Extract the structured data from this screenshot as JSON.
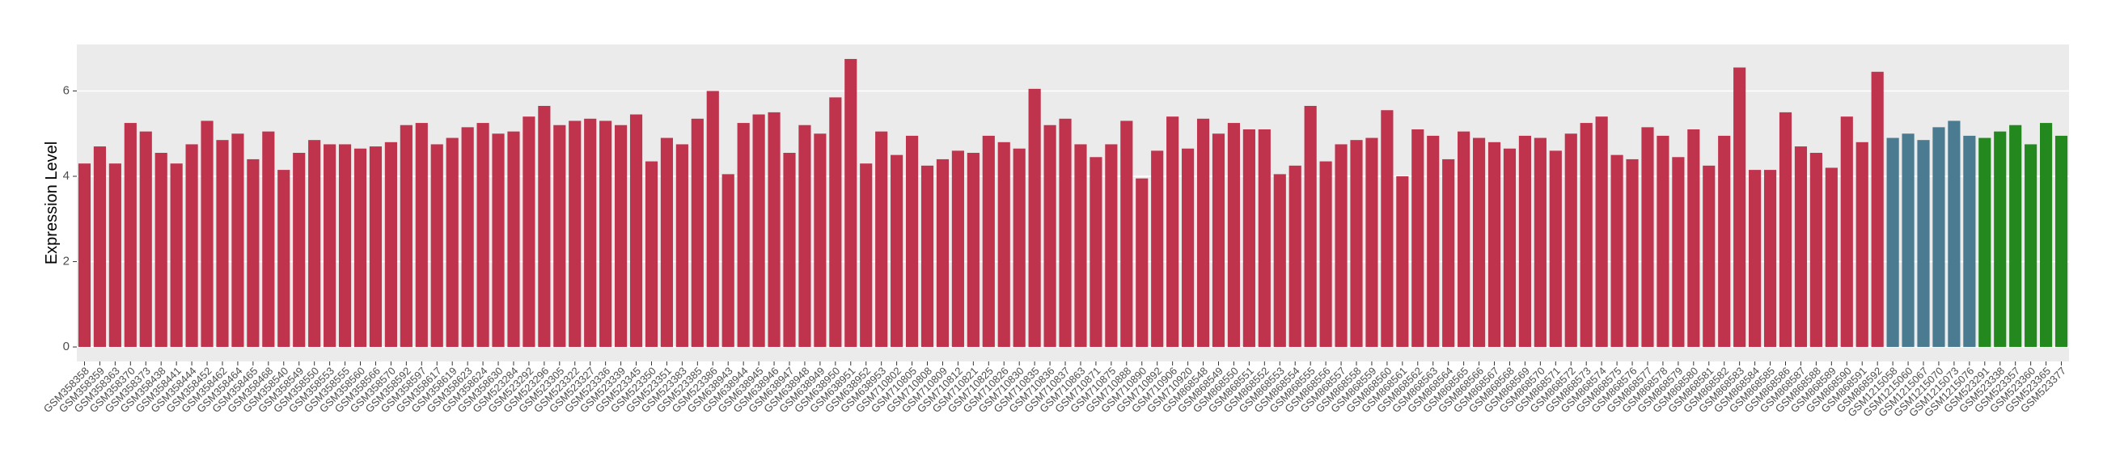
{
  "chart_data": {
    "type": "bar",
    "y_label": "Expression Level",
    "categories": [
      "GSM358358",
      "GSM358359",
      "GSM358363",
      "GSM358370",
      "GSM358373",
      "GSM358438",
      "GSM358441",
      "GSM358444",
      "GSM358452",
      "GSM358462",
      "GSM358464",
      "GSM358465",
      "GSM358468",
      "GSM358540",
      "GSM358549",
      "GSM358550",
      "GSM358553",
      "GSM358555",
      "GSM358560",
      "GSM358566",
      "GSM358570",
      "GSM358592",
      "GSM358597",
      "GSM358617",
      "GSM358619",
      "GSM358623",
      "GSM358624",
      "GSM358630",
      "GSM523284",
      "GSM523292",
      "GSM523296",
      "GSM523305",
      "GSM523322",
      "GSM523327",
      "GSM523336",
      "GSM523339",
      "GSM523345",
      "GSM523350",
      "GSM523351",
      "GSM523383",
      "GSM523385",
      "GSM523386",
      "GSM638943",
      "GSM638944",
      "GSM638945",
      "GSM638946",
      "GSM638947",
      "GSM638948",
      "GSM638949",
      "GSM638950",
      "GSM638951",
      "GSM638952",
      "GSM638953",
      "GSM710802",
      "GSM710805",
      "GSM710808",
      "GSM710809",
      "GSM710812",
      "GSM710821",
      "GSM710825",
      "GSM710826",
      "GSM710830",
      "GSM710835",
      "GSM710836",
      "GSM710837",
      "GSM710863",
      "GSM710871",
      "GSM710875",
      "GSM710888",
      "GSM710890",
      "GSM710892",
      "GSM710906",
      "GSM710920",
      "GSM868548",
      "GSM868549",
      "GSM868550",
      "GSM868551",
      "GSM868552",
      "GSM868553",
      "GSM868554",
      "GSM868555",
      "GSM868556",
      "GSM868557",
      "GSM868558",
      "GSM868559",
      "GSM868560",
      "GSM868561",
      "GSM868562",
      "GSM868563",
      "GSM868564",
      "GSM868565",
      "GSM868566",
      "GSM868567",
      "GSM868568",
      "GSM868569",
      "GSM868570",
      "GSM868571",
      "GSM868572",
      "GSM868573",
      "GSM868574",
      "GSM868575",
      "GSM868576",
      "GSM868577",
      "GSM868578",
      "GSM868579",
      "GSM868580",
      "GSM868581",
      "GSM868582",
      "GSM868583",
      "GSM868584",
      "GSM868585",
      "GSM868586",
      "GSM868587",
      "GSM868588",
      "GSM868589",
      "GSM868590",
      "GSM868591",
      "GSM868592",
      "GSM1215058",
      "GSM1215060",
      "GSM1215067",
      "GSM1215070",
      "GSM1215073",
      "GSM1215076",
      "GSM523291",
      "GSM523338",
      "GSM523357",
      "GSM523360",
      "GSM523365",
      "GSM523377"
    ],
    "values": [
      4.3,
      4.7,
      4.3,
      5.25,
      5.05,
      4.55,
      4.3,
      4.75,
      5.3,
      4.85,
      5.0,
      4.4,
      5.05,
      4.15,
      4.55,
      4.85,
      4.75,
      4.75,
      4.65,
      4.7,
      4.8,
      5.2,
      5.25,
      4.75,
      4.9,
      5.15,
      5.25,
      5.0,
      5.05,
      5.4,
      5.65,
      5.2,
      5.3,
      5.35,
      5.3,
      5.2,
      5.45,
      4.35,
      4.9,
      4.75,
      5.35,
      6.0,
      4.05,
      5.25,
      5.45,
      5.5,
      4.55,
      5.2,
      5.0,
      5.85,
      6.75,
      4.3,
      5.05,
      4.5,
      4.95,
      4.25,
      4.4,
      4.6,
      4.55,
      4.95,
      4.8,
      4.65,
      6.05,
      5.2,
      5.35,
      4.75,
      4.45,
      4.75,
      5.3,
      3.95,
      4.6,
      5.4,
      4.65,
      5.35,
      5.0,
      5.25,
      5.1,
      5.1,
      4.05,
      4.25,
      5.65,
      4.35,
      4.75,
      4.85,
      4.9,
      5.55,
      4.0,
      5.1,
      4.95,
      4.4,
      5.05,
      4.9,
      4.8,
      4.65,
      4.95,
      4.9,
      4.6,
      5.0,
      5.25,
      5.4,
      4.5,
      4.4,
      5.15,
      4.95,
      4.45,
      5.1,
      4.25,
      4.95,
      6.55,
      4.15,
      4.15,
      5.5,
      4.7,
      4.55,
      4.2,
      5.4,
      4.8,
      6.45,
      4.9,
      5.0,
      4.85,
      5.15,
      5.3,
      4.95,
      4.9,
      5.05,
      5.2,
      4.75,
      5.25,
      4.95
    ],
    "colors": [
      "#c0334d",
      "#c0334d",
      "#c0334d",
      "#c0334d",
      "#c0334d",
      "#c0334d",
      "#c0334d",
      "#c0334d",
      "#c0334d",
      "#c0334d",
      "#c0334d",
      "#c0334d",
      "#c0334d",
      "#c0334d",
      "#c0334d",
      "#c0334d",
      "#c0334d",
      "#c0334d",
      "#c0334d",
      "#c0334d",
      "#c0334d",
      "#c0334d",
      "#c0334d",
      "#c0334d",
      "#c0334d",
      "#c0334d",
      "#c0334d",
      "#c0334d",
      "#c0334d",
      "#c0334d",
      "#c0334d",
      "#c0334d",
      "#c0334d",
      "#c0334d",
      "#c0334d",
      "#c0334d",
      "#c0334d",
      "#c0334d",
      "#c0334d",
      "#c0334d",
      "#c0334d",
      "#c0334d",
      "#c0334d",
      "#c0334d",
      "#c0334d",
      "#c0334d",
      "#c0334d",
      "#c0334d",
      "#c0334d",
      "#c0334d",
      "#c0334d",
      "#c0334d",
      "#c0334d",
      "#c0334d",
      "#c0334d",
      "#c0334d",
      "#c0334d",
      "#c0334d",
      "#c0334d",
      "#c0334d",
      "#c0334d",
      "#c0334d",
      "#c0334d",
      "#c0334d",
      "#c0334d",
      "#c0334d",
      "#c0334d",
      "#c0334d",
      "#c0334d",
      "#c0334d",
      "#c0334d",
      "#c0334d",
      "#c0334d",
      "#c0334d",
      "#c0334d",
      "#c0334d",
      "#c0334d",
      "#c0334d",
      "#c0334d",
      "#c0334d",
      "#c0334d",
      "#c0334d",
      "#c0334d",
      "#c0334d",
      "#c0334d",
      "#c0334d",
      "#c0334d",
      "#c0334d",
      "#c0334d",
      "#c0334d",
      "#c0334d",
      "#c0334d",
      "#c0334d",
      "#c0334d",
      "#c0334d",
      "#c0334d",
      "#c0334d",
      "#c0334d",
      "#c0334d",
      "#c0334d",
      "#c0334d",
      "#c0334d",
      "#c0334d",
      "#c0334d",
      "#c0334d",
      "#c0334d",
      "#c0334d",
      "#c0334d",
      "#c0334d",
      "#c0334d",
      "#c0334d",
      "#c0334d",
      "#c0334d",
      "#c0334d",
      "#c0334d",
      "#c0334d",
      "#c0334d",
      "#c0334d",
      "#4a7b91",
      "#4a7b91",
      "#4a7b91",
      "#4a7b91",
      "#4a7b91",
      "#4a7b91",
      "#23891f",
      "#23891f",
      "#23891f",
      "#23891f",
      "#23891f",
      "#23891f"
    ],
    "ylim": [
      -0.34,
      7.09
    ],
    "yticks": [
      0,
      2,
      4,
      6
    ],
    "grid": true
  }
}
